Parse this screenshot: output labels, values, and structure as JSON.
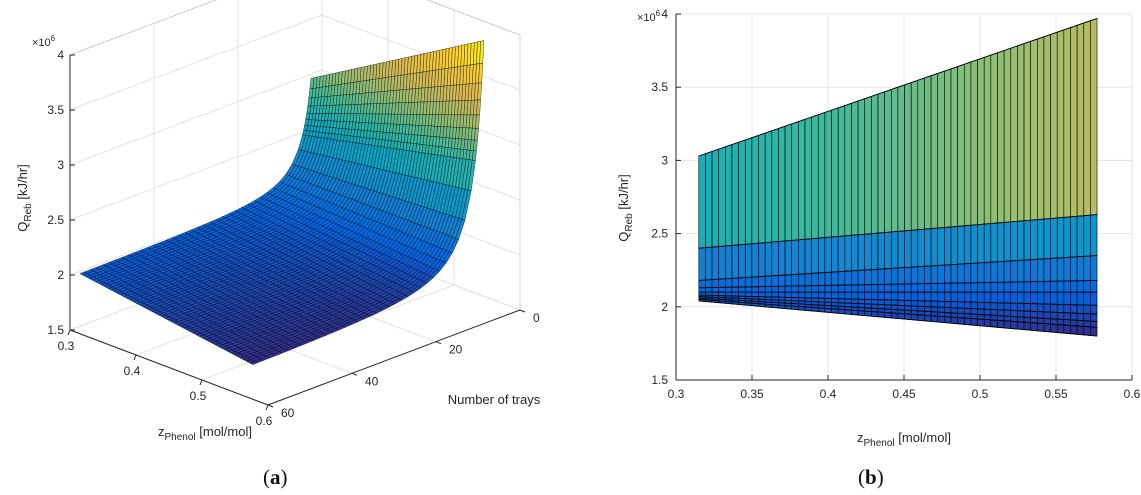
{
  "figure": {
    "panel_a_label": {
      "open": "(",
      "letter": "a",
      "close": ")"
    },
    "panel_b_label": {
      "open": "(",
      "letter": "b",
      "close": ")"
    }
  },
  "chart_data": [
    {
      "id": "a",
      "type": "surface3d",
      "zlabel_main": "Q",
      "zlabel_sub": "Reb",
      "zlabel_unit": " [kJ/hr]",
      "zmultiplier_base": "×10",
      "zmultiplier_exp": "6",
      "xlabel_main": "z",
      "xlabel_sub": "Phenol",
      "xlabel_unit": " [mol/mol]",
      "ylabel": "Number of trays",
      "xlim": [
        0.3,
        0.6
      ],
      "ylim": [
        0,
        60
      ],
      "zlim": [
        1.5,
        4
      ],
      "xticks": [
        "0.3",
        "0.4",
        "0.5",
        "0.6"
      ],
      "yticks": [
        "0",
        "20",
        "40",
        "60"
      ],
      "zticks": [
        "1.5",
        "2",
        "2.5",
        "3",
        "3.5",
        "4"
      ],
      "grid": true,
      "colormap": "parula",
      "surface": {
        "x_range": [
          0.315,
          0.577
        ],
        "trays_range": [
          5,
          60
        ],
        "value_at_max_trays": {
          "x": [
            0.315,
            0.577
          ],
          "q": [
            2.04,
            1.8
          ]
        },
        "value_at_min_trays": {
          "x": [
            0.315,
            0.577
          ],
          "q": [
            3.03,
            3.97
          ]
        }
      }
    },
    {
      "id": "b",
      "type": "surface_projection",
      "ylabel_main": "Q",
      "ylabel_sub": "Reb",
      "ylabel_unit": " [kJ/hr]",
      "ymultiplier_base": "×10",
      "ymultiplier_exp": "6",
      "xlabel_main": "z",
      "xlabel_sub": "Phenol",
      "xlabel_unit": " [mol/mol]",
      "xlim": [
        0.3,
        0.6
      ],
      "ylim": [
        1.5,
        4
      ],
      "xticks": [
        "0.3",
        "0.35",
        "0.4",
        "0.45",
        "0.5",
        "0.55",
        "0.6"
      ],
      "yticks": [
        "1.5",
        "2",
        "2.5",
        "3",
        "3.5",
        "4"
      ],
      "grid": true,
      "colormap": "parula",
      "x_range": [
        0.315,
        0.577
      ],
      "top_edge": {
        "x": [
          0.315,
          0.577
        ],
        "y": [
          3.03,
          3.97
        ]
      },
      "band_boundaries": [
        {
          "x": [
            0.315,
            0.577
          ],
          "y": [
            2.4,
            2.63
          ]
        },
        {
          "x": [
            0.315,
            0.577
          ],
          "y": [
            2.18,
            2.35
          ]
        },
        {
          "x": [
            0.315,
            0.577
          ],
          "y": [
            2.13,
            2.18
          ]
        },
        {
          "x": [
            0.315,
            0.577
          ],
          "y": [
            2.1,
            2.1
          ]
        },
        {
          "x": [
            0.315,
            0.577
          ],
          "y": [
            2.08,
            2.01
          ]
        },
        {
          "x": [
            0.315,
            0.577
          ],
          "y": [
            2.07,
            1.95
          ]
        },
        {
          "x": [
            0.315,
            0.577
          ],
          "y": [
            2.06,
            1.9
          ]
        },
        {
          "x": [
            0.315,
            0.577
          ],
          "y": [
            2.05,
            1.86
          ]
        }
      ],
      "bottom_edge": {
        "x": [
          0.315,
          0.577
        ],
        "y": [
          2.04,
          1.8
        ]
      }
    }
  ]
}
